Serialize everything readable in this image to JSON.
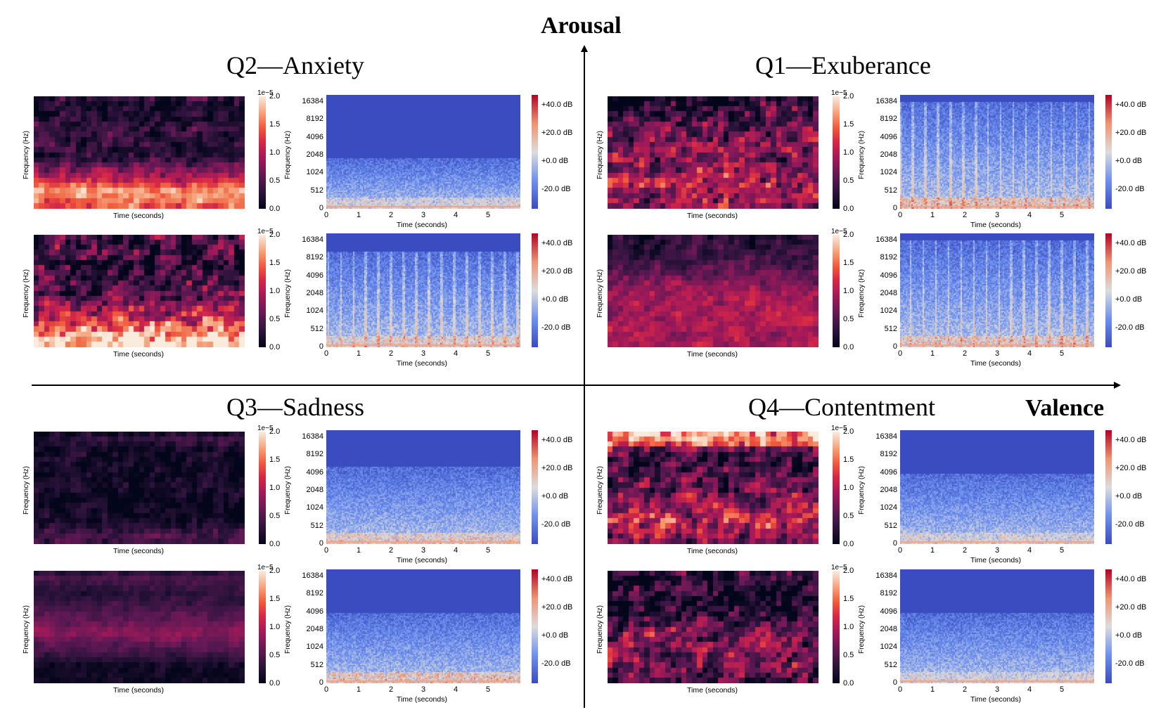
{
  "axes": {
    "arousal_label": "Arousal",
    "valence_label": "Valence"
  },
  "colors": {
    "spec_blue": "#3a4cc0",
    "spec_red": "#b40426",
    "heat_dark": "#03051a",
    "heat_light": "#faebdd"
  },
  "heatmap_colorbar": {
    "scale_label": "1e−5",
    "ticks": [
      "2.0",
      "1.5",
      "1.0",
      "0.5",
      "0.0"
    ]
  },
  "spectrogram_colorbar": {
    "ticks": [
      "+40.0 dB",
      "+20.0 dB",
      "+0.0 dB",
      "-20.0 dB"
    ]
  },
  "common": {
    "heat_xlabel": "Time (seconds)",
    "heat_ylabel": "Frequency (Hz)",
    "spec_xlabel": "Time (seconds)",
    "spec_ylabel": "Frequency (Hz)",
    "spec_xticks": [
      "0",
      "1",
      "2",
      "3",
      "4",
      "5"
    ],
    "spec_yticks": [
      "16384",
      "8192",
      "4096",
      "2048",
      "1024",
      "512",
      "0"
    ]
  },
  "quadrants": [
    {
      "id": "q2",
      "title": "Q2—Anxiety"
    },
    {
      "id": "q1",
      "title": "Q1—Exuberance"
    },
    {
      "id": "q3",
      "title": "Q3—Sadness"
    },
    {
      "id": "q4",
      "title": "Q4—Contentment"
    }
  ],
  "chart_data": [
    {
      "type": "heatmap",
      "quadrant": "Q2—Anxiety",
      "row": 1,
      "xlabel": "Time (seconds)",
      "ylabel": "Frequency (Hz)",
      "colorbar_range": [
        0,
        2.0
      ],
      "colorbar_scale": "1e-5"
    },
    {
      "type": "heatmap",
      "title": "spectrogram",
      "quadrant": "Q2—Anxiety",
      "row": 1,
      "xlabel": "Time (seconds)",
      "ylabel": "Frequency (Hz)",
      "xlim": [
        0,
        6
      ],
      "colorbar_ticks_db": [
        40,
        20,
        0,
        -20
      ]
    },
    {
      "type": "heatmap",
      "quadrant": "Q2—Anxiety",
      "row": 2,
      "colorbar_range": [
        0,
        2.0
      ]
    },
    {
      "type": "heatmap",
      "title": "spectrogram",
      "quadrant": "Q2—Anxiety",
      "row": 2,
      "xlim": [
        0,
        6
      ]
    },
    {
      "type": "heatmap",
      "quadrant": "Q1—Exuberance",
      "row": 1,
      "colorbar_range": [
        0,
        2.0
      ]
    },
    {
      "type": "heatmap",
      "title": "spectrogram",
      "quadrant": "Q1—Exuberance",
      "row": 1,
      "xlim": [
        0,
        6
      ]
    },
    {
      "type": "heatmap",
      "quadrant": "Q1—Exuberance",
      "row": 2,
      "colorbar_range": [
        0,
        2.0
      ]
    },
    {
      "type": "heatmap",
      "title": "spectrogram",
      "quadrant": "Q1—Exuberance",
      "row": 2,
      "xlim": [
        0,
        6
      ]
    },
    {
      "type": "heatmap",
      "quadrant": "Q3—Sadness",
      "row": 1,
      "colorbar_range": [
        0,
        2.0
      ]
    },
    {
      "type": "heatmap",
      "title": "spectrogram",
      "quadrant": "Q3—Sadness",
      "row": 1,
      "xlim": [
        0,
        6
      ]
    },
    {
      "type": "heatmap",
      "quadrant": "Q3—Sadness",
      "row": 2,
      "colorbar_range": [
        0,
        2.0
      ]
    },
    {
      "type": "heatmap",
      "title": "spectrogram",
      "quadrant": "Q3—Sadness",
      "row": 2,
      "xlim": [
        0,
        6
      ]
    },
    {
      "type": "heatmap",
      "quadrant": "Q4—Contentment",
      "row": 1,
      "colorbar_range": [
        0,
        2.0
      ]
    },
    {
      "type": "heatmap",
      "title": "spectrogram",
      "quadrant": "Q4—Contentment",
      "row": 1,
      "xlim": [
        0,
        6
      ]
    },
    {
      "type": "heatmap",
      "quadrant": "Q4—Contentment",
      "row": 2,
      "colorbar_range": [
        0,
        2.0
      ]
    },
    {
      "type": "heatmap",
      "title": "spectrogram",
      "quadrant": "Q4—Contentment",
      "row": 2,
      "xlim": [
        0,
        6
      ]
    }
  ]
}
